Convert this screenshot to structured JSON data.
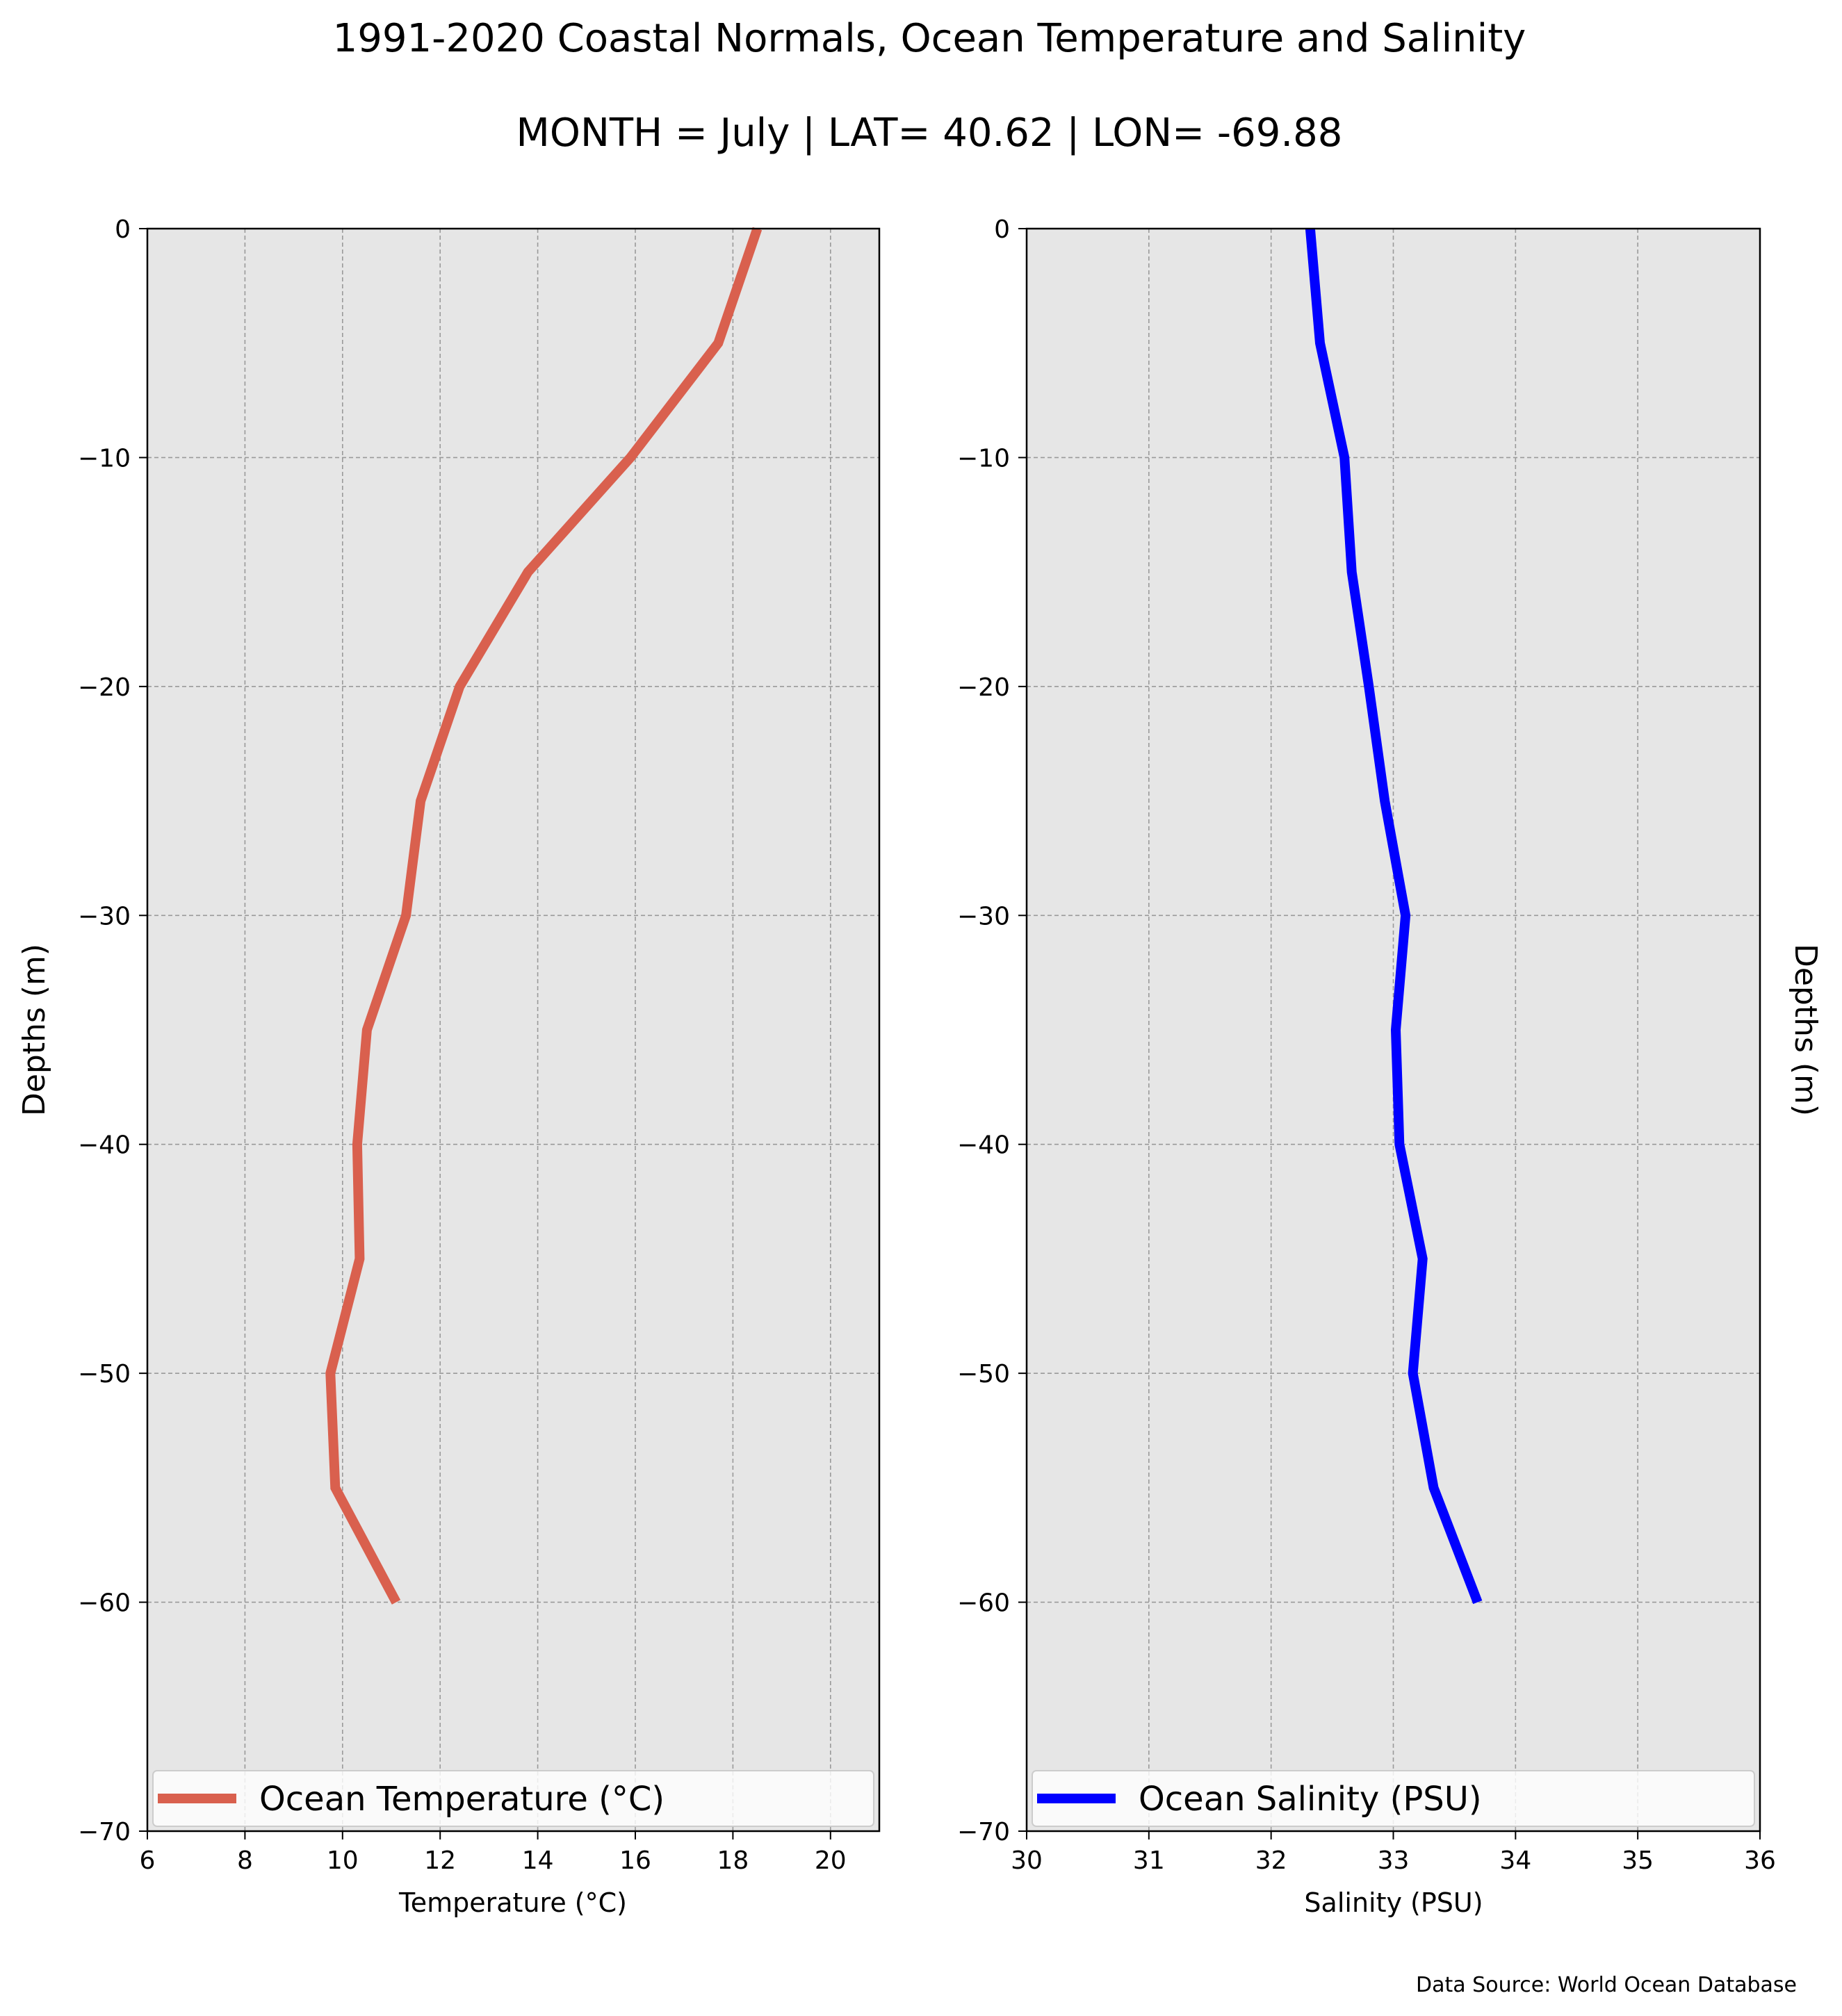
{
  "figure": {
    "title": "1991-2020 Coastal Normals, Ocean Temperature and Salinity",
    "subtitle": "MONTH = July | LAT= 40.62 | LON= -69.88",
    "source": "Data Source: World Ocean Database"
  },
  "chart_data": [
    {
      "type": "line",
      "xlabel": "Temperature ($^\\circ$C)",
      "xlabel_display": "Temperature (°C)",
      "ylabel": "Depths (m)",
      "ylabel_side": "left",
      "xlim": [
        6,
        21
      ],
      "ylim": [
        -70,
        0
      ],
      "xticks": [
        6,
        8,
        10,
        12,
        14,
        16,
        18,
        20
      ],
      "xtick_labels": [
        "6",
        "8",
        "10",
        "12",
        "14",
        "16",
        "18",
        "20"
      ],
      "yticks": [
        0,
        -10,
        -20,
        -30,
        -40,
        -50,
        -60,
        -70
      ],
      "ytick_labels": [
        "0",
        "−10",
        "−20",
        "−30",
        "−40",
        "−50",
        "−60",
        "−70"
      ],
      "grid": true,
      "background": "#e6e6e6",
      "legend_placement": "lower center",
      "series": [
        {
          "name": "Ocean Temperature (°C)",
          "color": "#d9604e",
          "x": [
            18.5,
            17.7,
            15.9,
            13.8,
            12.4,
            11.6,
            11.3,
            10.5,
            10.3,
            10.35,
            9.75,
            9.85,
            11.1
          ],
          "y": [
            0,
            -5,
            -10,
            -15,
            -20,
            -25,
            -30,
            -35,
            -40,
            -45,
            -50,
            -55,
            -60
          ]
        }
      ]
    },
    {
      "type": "line",
      "xlabel": "Salinity (PSU)",
      "xlabel_display": "Salinity (PSU)",
      "ylabel": "Depths (m)",
      "ylabel_side": "right",
      "xlim": [
        30,
        36
      ],
      "ylim": [
        -70,
        0
      ],
      "xticks": [
        30,
        31,
        32,
        33,
        34,
        35,
        36
      ],
      "xtick_labels": [
        "30",
        "31",
        "32",
        "33",
        "34",
        "35",
        "36"
      ],
      "yticks": [
        0,
        -10,
        -20,
        -30,
        -40,
        -50,
        -60,
        -70
      ],
      "ytick_labels": [
        "0",
        "−10",
        "−20",
        "−30",
        "−40",
        "−50",
        "−60",
        "−70"
      ],
      "grid": true,
      "background": "#e6e6e6",
      "legend_placement": "lower center",
      "series": [
        {
          "name": "Ocean Salinity (PSU)",
          "color": "#0000ff",
          "x": [
            32.32,
            32.4,
            32.6,
            32.66,
            32.8,
            32.93,
            33.1,
            33.02,
            33.05,
            33.24,
            33.16,
            33.33,
            33.69
          ],
          "y": [
            0,
            -5,
            -10,
            -15,
            -20,
            -25,
            -30,
            -35,
            -40,
            -45,
            -50,
            -55,
            -60
          ]
        }
      ]
    }
  ]
}
